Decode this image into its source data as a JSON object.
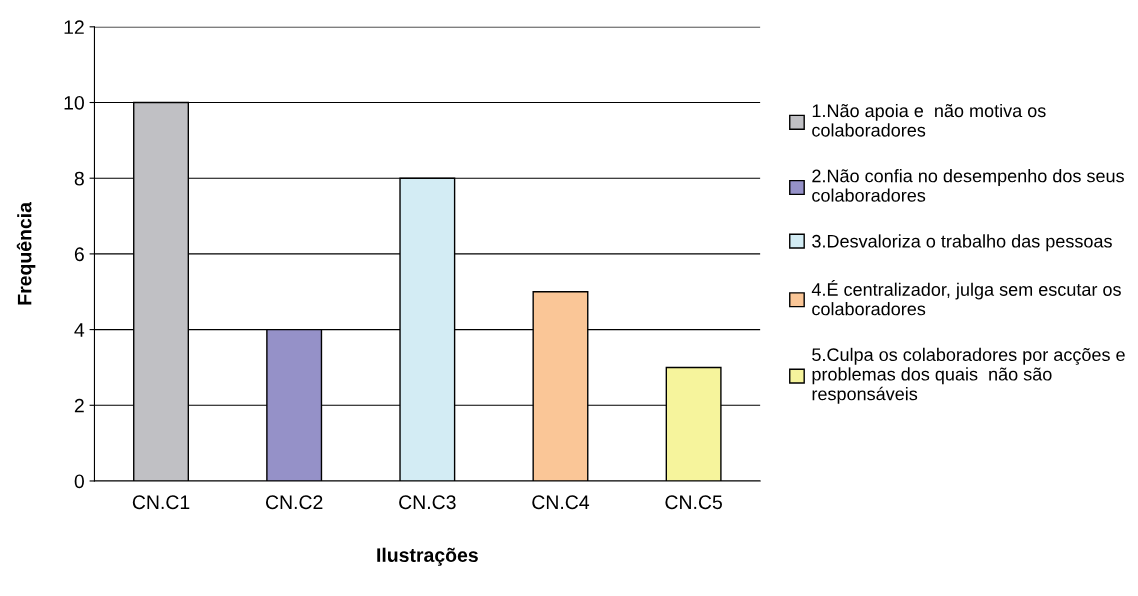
{
  "chart_data": {
    "type": "bar",
    "xlabel": "Ilustrações",
    "ylabel": "Frequência",
    "categories": [
      "CN.C1",
      "CN.C2",
      "CN.C3",
      "CN.C4",
      "CN.C5"
    ],
    "series": [
      {
        "name": "1.Não apoia e  não motiva os\ncolaboradores",
        "color": "#c0c0c4",
        "values": [
          10,
          null,
          null,
          null,
          null
        ]
      },
      {
        "name": "2.Não confia no desempenho dos seus\ncolaboradores",
        "color": "#9591c8",
        "values": [
          null,
          4,
          null,
          null,
          null
        ]
      },
      {
        "name": "3.Desvaloriza o trabalho das pessoas",
        "color": "#d3ecf4",
        "values": [
          null,
          null,
          8,
          null,
          null
        ]
      },
      {
        "name": "4.É centralizador, julga sem escutar os\ncolaboradores",
        "color": "#fac697",
        "values": [
          null,
          null,
          null,
          5,
          null
        ]
      },
      {
        "name": "5.Culpa os colaboradores por acções e\nproblemas dos quais  não são\nresponsáveis",
        "color": "#f6f49c",
        "values": [
          null,
          null,
          null,
          null,
          3
        ]
      }
    ],
    "ylim": [
      0,
      12
    ],
    "yticks": [
      0,
      2,
      4,
      6,
      8,
      10,
      12
    ],
    "grid": "y",
    "legend": "right"
  }
}
